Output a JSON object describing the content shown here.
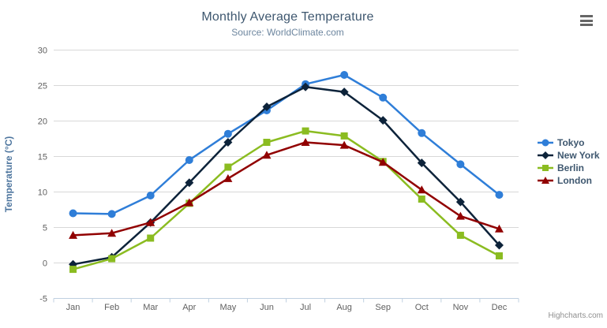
{
  "header": {
    "title": "Monthly Average Temperature",
    "subtitle": "Source: WorldClimate.com"
  },
  "menu": {
    "icon": "hamburger-menu-icon"
  },
  "credits": {
    "label": "Highcharts.com"
  },
  "colors": {
    "title_text": "#3E576F",
    "subtitle_text": "#6D869F",
    "axis_label_text": "#606060",
    "axis_title_text": "#4d759e",
    "legend_text": "#3E576F",
    "grid_line": "#D8D8D8",
    "axis_line": "#C0D0E0",
    "credits_text": "#909090"
  },
  "chart_data": {
    "type": "line",
    "title": "Monthly Average Temperature",
    "subtitle": "Source: WorldClimate.com",
    "xlabel": "",
    "ylabel": "Temperature (°C)",
    "categories": [
      "Jan",
      "Feb",
      "Mar",
      "Apr",
      "May",
      "Jun",
      "Jul",
      "Aug",
      "Sep",
      "Oct",
      "Nov",
      "Dec"
    ],
    "ylim": [
      -5,
      30
    ],
    "yticks": [
      -5,
      0,
      5,
      10,
      15,
      20,
      25,
      30
    ],
    "grid": true,
    "legend_position": "right",
    "series": [
      {
        "name": "Tokyo",
        "color": "#2f7ed8",
        "marker": "circle",
        "values": [
          7.0,
          6.9,
          9.5,
          14.5,
          18.2,
          21.5,
          25.2,
          26.5,
          23.3,
          18.3,
          13.9,
          9.6
        ]
      },
      {
        "name": "New York",
        "color": "#0d233a",
        "marker": "diamond",
        "values": [
          -0.2,
          0.8,
          5.7,
          11.3,
          17.0,
          22.0,
          24.8,
          24.1,
          20.1,
          14.1,
          8.6,
          2.5
        ]
      },
      {
        "name": "Berlin",
        "color": "#8bbc21",
        "marker": "square",
        "values": [
          -0.9,
          0.6,
          3.5,
          8.4,
          13.5,
          17.0,
          18.6,
          17.9,
          14.3,
          9.0,
          3.9,
          1.0
        ]
      },
      {
        "name": "London",
        "color": "#910000",
        "marker": "triangle-up",
        "values": [
          3.9,
          4.2,
          5.7,
          8.5,
          11.9,
          15.2,
          17.0,
          16.6,
          14.2,
          10.3,
          6.6,
          4.8
        ]
      }
    ]
  }
}
